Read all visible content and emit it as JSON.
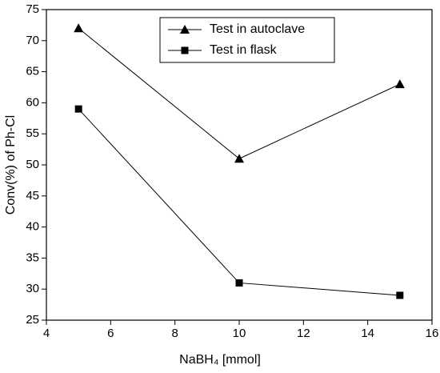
{
  "chart_data": {
    "type": "line",
    "x_label": "NaBH₄ [mmol]",
    "y_label": "Conv(%) of Ph-Cl",
    "x": [
      5,
      10,
      15
    ],
    "series": [
      {
        "name": "Test in autoclave",
        "color": "#000000",
        "marker": "triangle",
        "values": [
          72,
          51,
          63
        ]
      },
      {
        "name": "Test in flask",
        "color": "#000000",
        "marker": "square",
        "values": [
          59,
          31,
          29
        ]
      }
    ],
    "xlim": [
      4,
      16
    ],
    "xticks": [
      4,
      6,
      8,
      10,
      12,
      14,
      16
    ],
    "ylim": [
      25,
      75
    ],
    "yticks": [
      25,
      30,
      35,
      40,
      45,
      50,
      55,
      60,
      65,
      70,
      75
    ],
    "grid": false,
    "legend": "upper center"
  }
}
